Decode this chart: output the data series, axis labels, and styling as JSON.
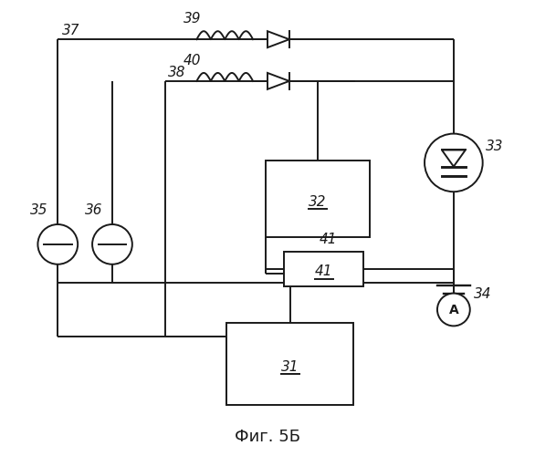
{
  "title": "Фиг. 5Б",
  "bg_color": "#ffffff",
  "line_color": "#1a1a1a",
  "line_width": 1.4
}
